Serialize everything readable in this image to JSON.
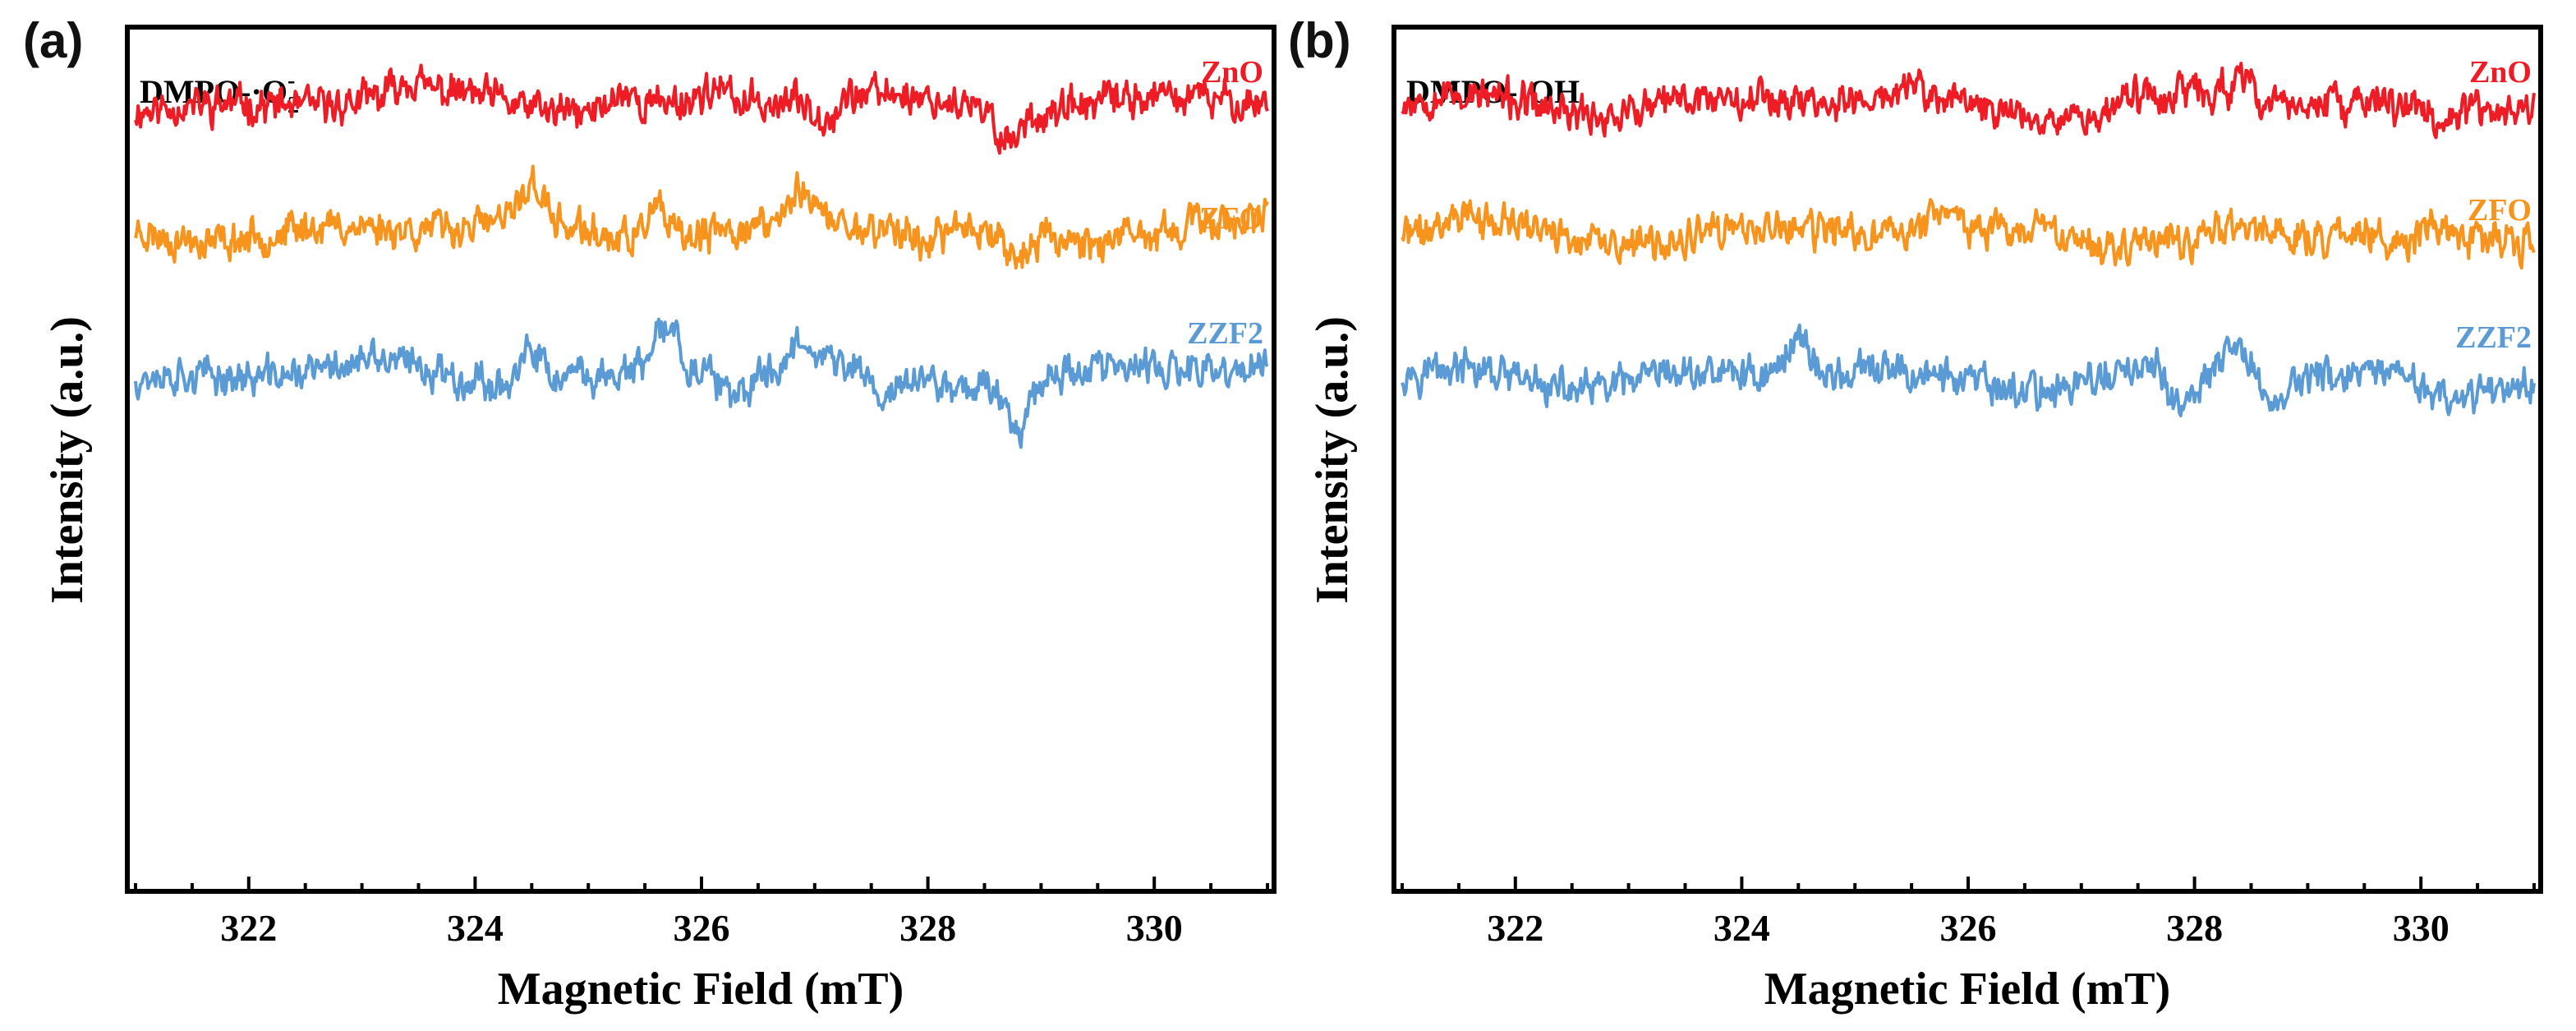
{
  "figure": {
    "panel_a_letter": "(a)",
    "panel_b_letter": "(b)"
  },
  "chart_data": [
    {
      "type": "line",
      "panel": "(a)",
      "title": "DMPO-·O2-",
      "title_text": "DMPO-·O",
      "title_sub": "2",
      "title_sup": "-",
      "xlabel": "Magnetic Field (mT)",
      "ylabel": "Intensity (a.u.)",
      "xlim": [
        321,
        331
      ],
      "xticks": [
        322,
        324,
        326,
        328,
        330
      ],
      "yticks_shown": false,
      "series": [
        {
          "name": "ZnO",
          "color": "#ee1c25",
          "offset": 2.0,
          "seed": 11,
          "features": [
            [
              323.4,
              0.1
            ],
            [
              325.3,
              0.12
            ],
            [
              326.1,
              0.08
            ],
            [
              327.1,
              -0.12
            ],
            [
              328.7,
              -0.18
            ]
          ]
        },
        {
          "name": "ZFO",
          "color": "#f7941d",
          "offset": 1.0,
          "seed": 23,
          "features": [
            [
              324.5,
              0.28
            ],
            [
              325.6,
              0.22
            ],
            [
              326.9,
              0.25
            ],
            [
              328.0,
              -0.12
            ],
            [
              328.8,
              -0.2
            ]
          ]
        },
        {
          "name": "ZZF2",
          "color": "#5b9bd5",
          "offset": 0.0,
          "seed": 37,
          "features": [
            [
              324.5,
              0.2
            ],
            [
              325.7,
              0.34
            ],
            [
              326.3,
              -0.22
            ],
            [
              326.9,
              0.22
            ],
            [
              327.6,
              -0.18
            ],
            [
              328.8,
              -0.3
            ]
          ]
        }
      ]
    },
    {
      "type": "line",
      "panel": "(b)",
      "title": "DMPO-·OH",
      "title_text": "DMPO-·OH",
      "title_sub": "",
      "title_sup": "",
      "xlabel": "Magnetic Field (mT)",
      "ylabel": "Intensity (a.u.)",
      "xlim": [
        321,
        331
      ],
      "xticks": [
        322,
        324,
        326,
        328,
        330
      ],
      "yticks_shown": false,
      "series": [
        {
          "name": "ZnO",
          "color": "#ee1c25",
          "offset": 2.0,
          "seed": 53,
          "features": [
            [
              325.5,
              0.1
            ],
            [
              327.1,
              -0.08
            ],
            [
              328.4,
              0.1
            ],
            [
              330.2,
              -0.12
            ]
          ]
        },
        {
          "name": "ZFO",
          "color": "#f7941d",
          "offset": 1.0,
          "seed": 71,
          "features": [
            [
              321.5,
              0.12
            ],
            [
              325.8,
              0.15
            ],
            [
              326.7,
              0.1
            ],
            [
              327.9,
              -0.1
            ],
            [
              329.8,
              -0.14
            ]
          ]
        },
        {
          "name": "ZZF2",
          "color": "#5b9bd5",
          "offset": 0.0,
          "seed": 97,
          "features": [
            [
              324.5,
              0.3
            ],
            [
              327.9,
              -0.3
            ],
            [
              328.4,
              0.18
            ],
            [
              328.7,
              -0.18
            ],
            [
              330.3,
              -0.16
            ]
          ]
        }
      ]
    }
  ]
}
